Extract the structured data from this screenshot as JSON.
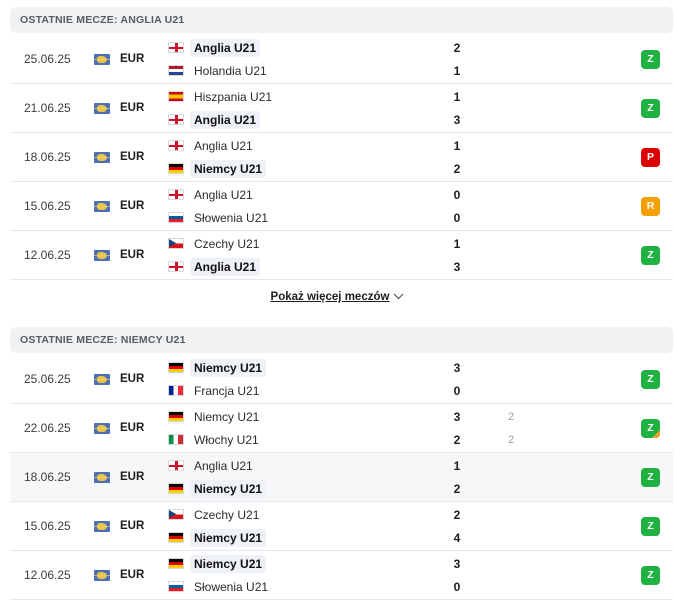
{
  "colors": {
    "win": "#1fb141",
    "loss": "#dc0000",
    "draw": "#f3a000"
  },
  "sections": [
    {
      "header": "OSTATNIE MECZE: ANGLIA U21",
      "matches": [
        {
          "date": "25.06.25",
          "comp": "EUR",
          "home": {
            "flag": "eng",
            "name": "Anglia U21",
            "score": "2",
            "bold": true
          },
          "away": {
            "flag": "ned",
            "name": "Holandia U21",
            "score": "1",
            "bold": false
          },
          "result": "Z",
          "result_type": "win"
        },
        {
          "date": "21.06.25",
          "comp": "EUR",
          "home": {
            "flag": "esp",
            "name": "Hiszpania U21",
            "score": "1",
            "bold": false
          },
          "away": {
            "flag": "eng",
            "name": "Anglia U21",
            "score": "3",
            "bold": true
          },
          "result": "Z",
          "result_type": "win"
        },
        {
          "date": "18.06.25",
          "comp": "EUR",
          "home": {
            "flag": "eng",
            "name": "Anglia U21",
            "score": "1",
            "bold": false
          },
          "away": {
            "flag": "ger",
            "name": "Niemcy U21",
            "score": "2",
            "bold": true
          },
          "result": "P",
          "result_type": "loss"
        },
        {
          "date": "15.06.25",
          "comp": "EUR",
          "home": {
            "flag": "eng",
            "name": "Anglia U21",
            "score": "0",
            "bold": false
          },
          "away": {
            "flag": "svn",
            "name": "Słowenia U21",
            "score": "0",
            "bold": false
          },
          "result": "R",
          "result_type": "draw"
        },
        {
          "date": "12.06.25",
          "comp": "EUR",
          "home": {
            "flag": "cze",
            "name": "Czechy U21",
            "score": "1",
            "bold": false
          },
          "away": {
            "flag": "eng",
            "name": "Anglia U21",
            "score": "3",
            "bold": true
          },
          "result": "Z",
          "result_type": "win"
        }
      ]
    },
    {
      "header": "OSTATNIE MECZE: NIEMCY U21",
      "matches": [
        {
          "date": "25.06.25",
          "comp": "EUR",
          "home": {
            "flag": "ger",
            "name": "Niemcy U21",
            "score": "3",
            "bold": true
          },
          "away": {
            "flag": "fra",
            "name": "Francja U21",
            "score": "0",
            "bold": false
          },
          "result": "Z",
          "result_type": "win"
        },
        {
          "date": "22.06.25",
          "comp": "EUR",
          "home": {
            "flag": "ger",
            "name": "Niemcy U21",
            "score": "3",
            "score2": "2",
            "bold": false
          },
          "away": {
            "flag": "ita",
            "name": "Włochy U21",
            "score": "2",
            "score2": "2",
            "bold": false
          },
          "result": "Z",
          "result_type": "win",
          "penalties": true
        },
        {
          "date": "18.06.25",
          "comp": "EUR",
          "home": {
            "flag": "eng",
            "name": "Anglia U21",
            "score": "1",
            "bold": false
          },
          "away": {
            "flag": "ger",
            "name": "Niemcy U21",
            "score": "2",
            "bold": true
          },
          "result": "Z",
          "result_type": "win"
        },
        {
          "date": "15.06.25",
          "comp": "EUR",
          "home": {
            "flag": "cze",
            "name": "Czechy U21",
            "score": "2",
            "bold": false
          },
          "away": {
            "flag": "ger",
            "name": "Niemcy U21",
            "score": "4",
            "bold": true
          },
          "result": "Z",
          "result_type": "win"
        },
        {
          "date": "12.06.25",
          "comp": "EUR",
          "home": {
            "flag": "ger",
            "name": "Niemcy U21",
            "score": "3",
            "bold": true
          },
          "away": {
            "flag": "svn",
            "name": "Słowenia U21",
            "score": "0",
            "bold": false
          },
          "result": "Z",
          "result_type": "win"
        }
      ]
    }
  ],
  "show_more": "Pokaż więcej meczów"
}
